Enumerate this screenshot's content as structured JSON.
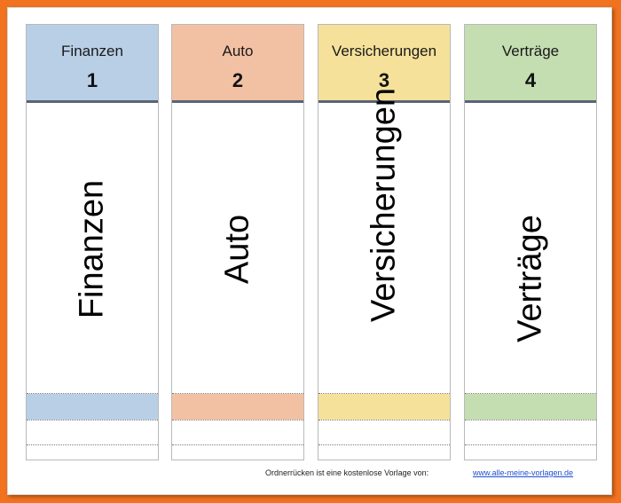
{
  "spines": [
    {
      "name": "Finanzen",
      "number": "1",
      "color": "#b8cfe6"
    },
    {
      "name": "Auto",
      "number": "2",
      "color": "#f2c1a3"
    },
    {
      "name": "Versicherungen",
      "number": "3",
      "color": "#f5e19a"
    },
    {
      "name": "Verträge",
      "number": "4",
      "color": "#c4ddb1"
    }
  ],
  "footer": {
    "text": "Ordnerrücken ist eine kostenlose Vorlage von:",
    "link": "www.alle-meine-vorlagen.de"
  },
  "colors": {
    "background": "#f2731f",
    "header_rule": "#5a6475"
  }
}
